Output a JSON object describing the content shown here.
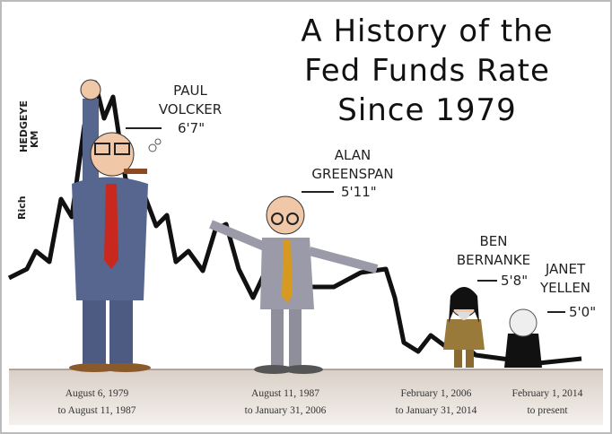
{
  "title": {
    "lines": [
      "A History of the",
      "Fed Funds Rate",
      "Since 1979"
    ]
  },
  "signature": {
    "name": "Rich",
    "brand": "HEDGEYE",
    "initials": "KM"
  },
  "chairs": [
    {
      "name_lines": [
        "PAUL",
        "VOLCKER"
      ],
      "height": "6'7\"",
      "term_lines": [
        "August 6, 1979",
        "to August 11, 1987"
      ]
    },
    {
      "name_lines": [
        "ALAN",
        "GREENSPAN"
      ],
      "height": "5'11\"",
      "term_lines": [
        "August 11, 1987",
        "to January 31, 2006"
      ]
    },
    {
      "name_lines": [
        "BEN",
        "BERNANKE"
      ],
      "height": "5'8\"",
      "term_lines": [
        "February 1, 2006",
        "to January 31, 2014"
      ]
    },
    {
      "name_lines": [
        "JANET",
        "YELLEN"
      ],
      "height": "5'0\"",
      "term_lines": [
        "February 1, 2014",
        "to present"
      ]
    }
  ]
}
